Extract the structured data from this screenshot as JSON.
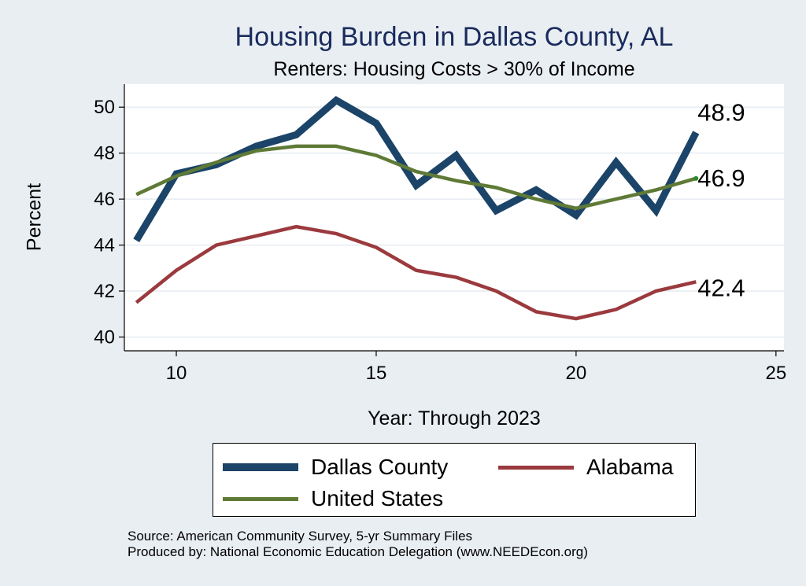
{
  "chart_data": {
    "type": "line",
    "title": "Housing Burden in Dallas County, AL",
    "subtitle": "Renters: Housing Costs > 30% of Income",
    "xlabel": "Year: Through 2023",
    "ylabel": "Percent",
    "xlim": [
      8.7,
      25.2
    ],
    "ylim": [
      39.4,
      51.0
    ],
    "xticks": [
      10,
      15,
      20,
      25
    ],
    "yticks": [
      40,
      42,
      44,
      46,
      48,
      50
    ],
    "grid": true,
    "legend_position": "bottom",
    "series": [
      {
        "name": "Dallas County",
        "color": "#1b4468",
        "style": "thick",
        "x": [
          9,
          10,
          11,
          12,
          13,
          14,
          15,
          16,
          17,
          18,
          19,
          20,
          21,
          22,
          23
        ],
        "values": [
          44.2,
          47.1,
          47.5,
          48.3,
          48.8,
          50.3,
          49.3,
          46.6,
          47.9,
          45.5,
          46.4,
          45.3,
          47.6,
          45.5,
          48.9
        ],
        "end_label": "48.9"
      },
      {
        "name": "Alabama",
        "color": "#9b3a3e",
        "style": "medium",
        "x": [
          9,
          10,
          11,
          12,
          13,
          14,
          15,
          16,
          17,
          18,
          19,
          20,
          21,
          22,
          23
        ],
        "values": [
          41.5,
          42.9,
          44.0,
          44.4,
          44.8,
          44.5,
          43.9,
          42.9,
          42.6,
          42.0,
          41.1,
          40.8,
          41.2,
          42.0,
          42.4
        ],
        "end_label": "42.4"
      },
      {
        "name": "United States",
        "color": "#5e7a36",
        "style": "medium",
        "x": [
          9,
          10,
          11,
          12,
          13,
          14,
          15,
          16,
          17,
          18,
          19,
          20,
          21,
          22,
          23
        ],
        "values": [
          46.2,
          47.0,
          47.6,
          48.1,
          48.3,
          48.3,
          47.9,
          47.2,
          46.8,
          46.5,
          46.0,
          45.6,
          46.0,
          46.4,
          46.9
        ],
        "end_label": "46.9"
      }
    ]
  },
  "legend": {
    "items": [
      {
        "label": "Dallas County",
        "color": "#1b4468"
      },
      {
        "label": "Alabama",
        "color": "#9b3a3e"
      },
      {
        "label": "United States",
        "color": "#5e7a36"
      }
    ]
  },
  "source": {
    "line1": "Source: American Community Survey, 5-yr Summary Files",
    "line2": "Produced by: National Economic Education Delegation (www.NEEDEcon.org)"
  }
}
